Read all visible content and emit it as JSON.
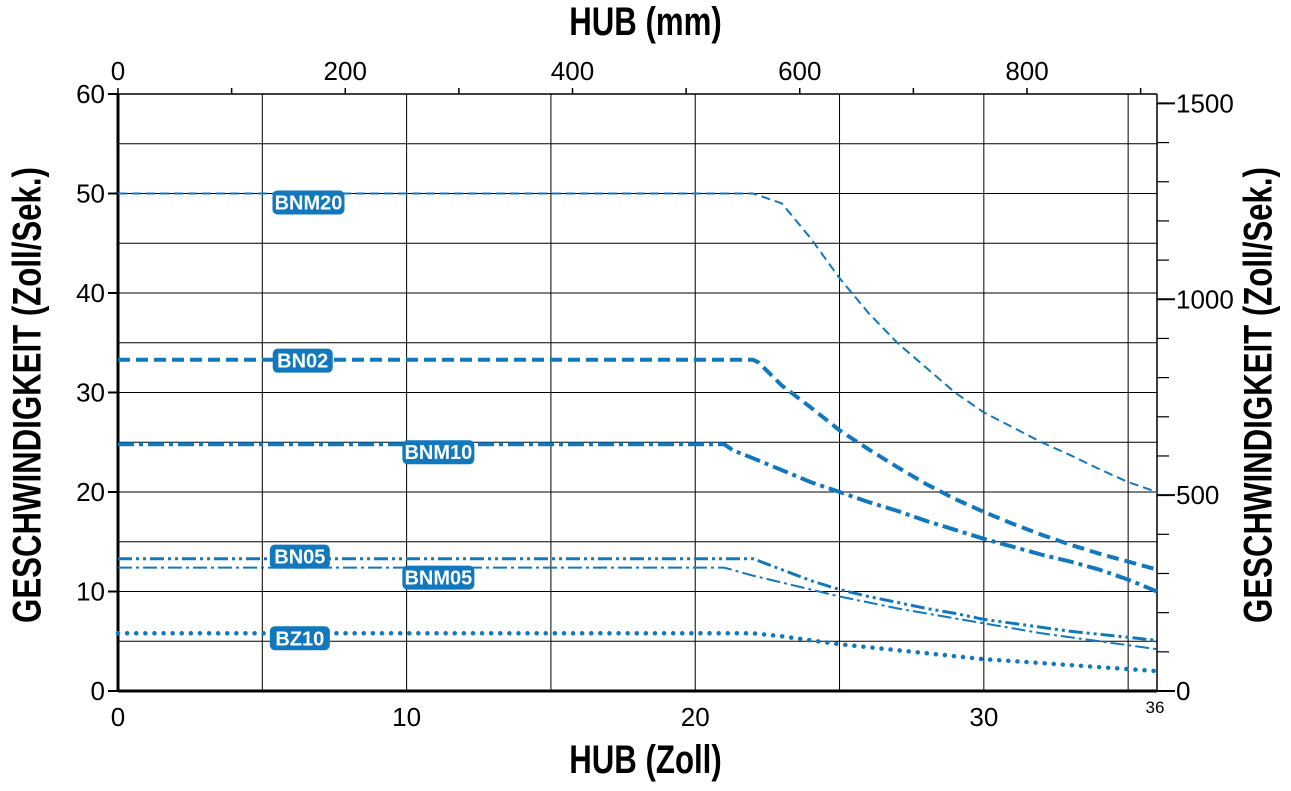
{
  "chart_data": {
    "type": "line",
    "title_top": "HUB (mm)",
    "xlabel": "HUB (Zoll)",
    "ylabel_left": "GESCHWINDIGKEIT (Zoll/Sek.)",
    "ylabel_right": "GESCHWINDIGKEIT (Zoll/Sek.)",
    "x_bottom": {
      "min": 0,
      "max": 36,
      "ticks": [
        0,
        10,
        20,
        30
      ],
      "end_label": "36"
    },
    "x_top": {
      "min": 0,
      "max": 914.4,
      "ticks": [
        0,
        200,
        400,
        600,
        800
      ]
    },
    "y_left": {
      "min": 0,
      "max": 60,
      "ticks": [
        0,
        10,
        20,
        30,
        40,
        50,
        60
      ]
    },
    "y_right": {
      "min": 0,
      "max": 1524,
      "ticks": [
        0,
        500,
        1000,
        1500
      ]
    },
    "grid": true,
    "colors": {
      "series": "#1278bd",
      "label_bg": "#1278bd",
      "label_text": "#ffffff",
      "axis": "#000000"
    },
    "series": [
      {
        "name": "BNM20",
        "style": "dash-thin",
        "label_at": [
          6.6,
          49.1
        ],
        "x": [
          0,
          22,
          23,
          24,
          25,
          26,
          27,
          28,
          29,
          30,
          31,
          32,
          33,
          34,
          35,
          36
        ],
        "y": [
          50,
          50,
          49,
          45.5,
          41.5,
          38,
          35,
          32.5,
          30,
          28,
          26.5,
          25,
          23.7,
          22.3,
          21,
          20
        ]
      },
      {
        "name": "BN02",
        "style": "dash-thick",
        "label_at": [
          6.4,
          33.2
        ],
        "x": [
          0,
          22,
          22.2,
          23,
          24,
          25,
          26,
          27,
          28,
          29,
          30,
          31,
          32,
          33,
          34,
          35,
          36
        ],
        "y": [
          33.3,
          33.3,
          33,
          30.7,
          28.5,
          26.2,
          24.3,
          22.5,
          20.8,
          19.3,
          18,
          16.8,
          15.7,
          14.7,
          13.8,
          13,
          12.2
        ]
      },
      {
        "name": "BNM10",
        "style": "dashdot-thick",
        "label_at": [
          11.1,
          24.0
        ],
        "x": [
          0,
          21,
          21.3,
          22,
          23,
          24,
          25,
          26,
          27,
          28,
          29,
          30,
          31,
          32,
          33,
          34,
          35,
          36
        ],
        "y": [
          24.8,
          24.8,
          24.2,
          23.4,
          22.2,
          21,
          20,
          19,
          18.1,
          17.1,
          16.2,
          15.3,
          14.5,
          13.7,
          13,
          12.2,
          11.2,
          10
        ]
      },
      {
        "name": "BN05",
        "style": "dashdotdot",
        "label_at": [
          6.3,
          13.5
        ],
        "x": [
          0,
          22,
          23,
          24,
          25,
          26,
          27,
          28,
          29,
          30,
          31,
          32,
          33,
          34,
          35,
          36
        ],
        "y": [
          13.3,
          13.3,
          12.2,
          11.1,
          10.2,
          9.5,
          8.9,
          8.3,
          7.8,
          7.2,
          6.8,
          6.4,
          6.0,
          5.7,
          5.4,
          5.1
        ]
      },
      {
        "name": "BNM05",
        "style": "dashdot-thin",
        "label_at": [
          11.1,
          11.4
        ],
        "x": [
          0,
          21,
          22,
          23,
          24,
          25,
          26,
          27,
          28,
          29,
          30,
          31,
          32,
          33,
          34,
          35,
          36
        ],
        "y": [
          12.4,
          12.4,
          11.6,
          10.9,
          10.2,
          9.5,
          8.9,
          8.3,
          7.8,
          7.3,
          6.8,
          6.3,
          5.8,
          5.4,
          5.0,
          4.6,
          4.2
        ]
      },
      {
        "name": "BZ10",
        "style": "dotted",
        "label_at": [
          6.3,
          5.3
        ],
        "x": [
          0,
          22,
          23,
          24,
          25,
          26,
          27,
          28,
          29,
          30,
          31,
          32,
          33,
          34,
          35,
          36
        ],
        "y": [
          5.8,
          5.8,
          5.5,
          5.1,
          4.7,
          4.4,
          4.1,
          3.8,
          3.5,
          3.2,
          3.0,
          2.8,
          2.6,
          2.4,
          2.2,
          2.0
        ]
      }
    ]
  }
}
